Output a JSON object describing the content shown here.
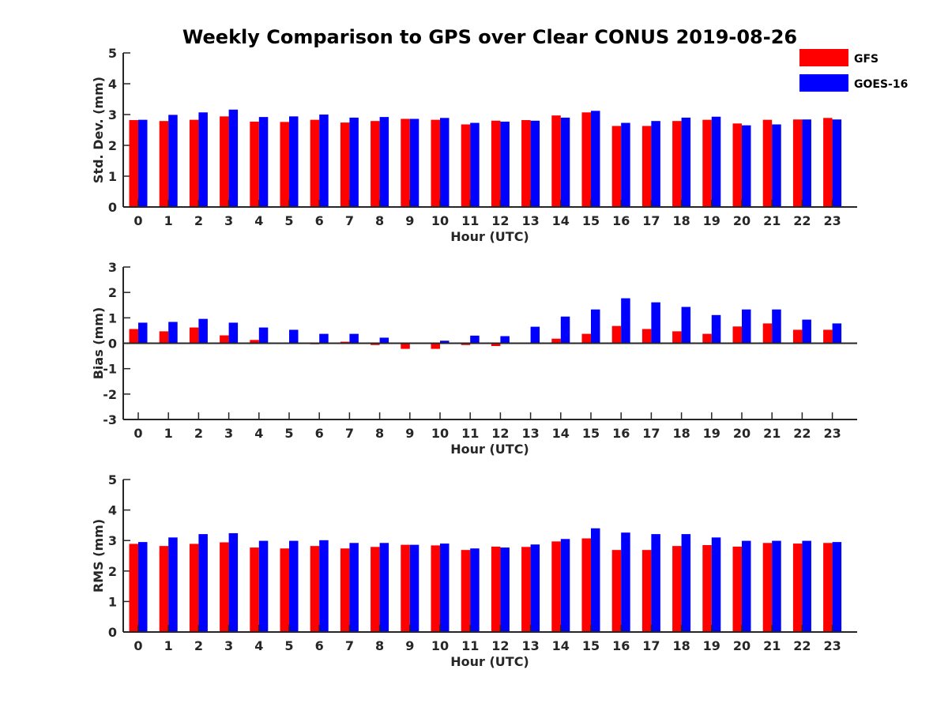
{
  "chart_data": {
    "title": "Weekly Comparison to GPS over Clear CONUS 2019-08-26",
    "type": "bar",
    "legend": {
      "placement": "top-right",
      "entries": [
        {
          "name": "GFS",
          "color": "#ff0000"
        },
        {
          "name": "GOES-16",
          "color": "#0000ff"
        }
      ]
    },
    "categories": [
      "0",
      "1",
      "2",
      "3",
      "4",
      "5",
      "6",
      "7",
      "8",
      "9",
      "10",
      "11",
      "12",
      "13",
      "14",
      "15",
      "16",
      "17",
      "18",
      "19",
      "20",
      "21",
      "22",
      "23"
    ],
    "panels": [
      {
        "ylabel": "Std. Dev. (mm)",
        "xlabel": "Hour (UTC)",
        "ylim": [
          0,
          5
        ],
        "yticks": [
          "0",
          "1",
          "2",
          "3",
          "4",
          "5"
        ],
        "baseline": 0,
        "series": [
          {
            "name": "GFS",
            "color": "#ff0000",
            "values": [
              2.82,
              2.79,
              2.83,
              2.94,
              2.77,
              2.76,
              2.83,
              2.74,
              2.79,
              2.86,
              2.83,
              2.68,
              2.8,
              2.82,
              2.97,
              3.07,
              2.63,
              2.63,
              2.79,
              2.83,
              2.71,
              2.83,
              2.84,
              2.89
            ]
          },
          {
            "name": "GOES-16",
            "color": "#0000ff",
            "values": [
              2.83,
              2.99,
              3.07,
              3.16,
              2.92,
              2.94,
              3.0,
              2.9,
              2.92,
              2.86,
              2.89,
              2.73,
              2.77,
              2.8,
              2.9,
              3.12,
              2.73,
              2.79,
              2.9,
              2.93,
              2.65,
              2.68,
              2.84,
              2.84
            ]
          }
        ]
      },
      {
        "ylabel": "Bias (mm)",
        "xlabel": "Hour (UTC)",
        "ylim": [
          -3,
          3
        ],
        "yticks": [
          "-3",
          "-2",
          "-1",
          "0",
          "1",
          "2",
          "3"
        ],
        "baseline": 0,
        "series": [
          {
            "name": "GFS",
            "color": "#ff0000",
            "values": [
              0.56,
              0.47,
              0.62,
              0.31,
              0.13,
              0.03,
              -0.04,
              0.06,
              -0.07,
              -0.22,
              -0.22,
              -0.07,
              -0.11,
              0.03,
              0.18,
              0.37,
              0.68,
              0.56,
              0.47,
              0.37,
              0.66,
              0.78,
              0.53,
              0.53
            ]
          },
          {
            "name": "GOES-16",
            "color": "#0000ff",
            "values": [
              0.81,
              0.84,
              0.96,
              0.81,
              0.62,
              0.53,
              0.37,
              0.37,
              0.22,
              -0.03,
              0.1,
              0.3,
              0.28,
              0.65,
              1.05,
              1.33,
              1.77,
              1.61,
              1.43,
              1.11,
              1.33,
              1.33,
              0.93,
              0.78
            ]
          }
        ]
      },
      {
        "ylabel": "RMS (mm)",
        "xlabel": "Hour (UTC)",
        "ylim": [
          0,
          5
        ],
        "yticks": [
          "0",
          "1",
          "2",
          "3",
          "4",
          "5"
        ],
        "baseline": 0,
        "series": [
          {
            "name": "GFS",
            "color": "#ff0000",
            "values": [
              2.89,
              2.82,
              2.89,
              2.94,
              2.77,
              2.74,
              2.82,
              2.74,
              2.79,
              2.86,
              2.84,
              2.69,
              2.8,
              2.79,
              2.97,
              3.07,
              2.69,
              2.69,
              2.82,
              2.85,
              2.8,
              2.92,
              2.9,
              2.92
            ]
          },
          {
            "name": "GOES-16",
            "color": "#0000ff",
            "values": [
              2.95,
              3.1,
              3.21,
              3.24,
              2.99,
              2.99,
              3.01,
              2.92,
              2.92,
              2.86,
              2.9,
              2.74,
              2.77,
              2.87,
              3.05,
              3.4,
              3.26,
              3.21,
              3.21,
              3.1,
              2.99,
              2.99,
              2.99,
              2.95
            ]
          }
        ]
      }
    ]
  }
}
